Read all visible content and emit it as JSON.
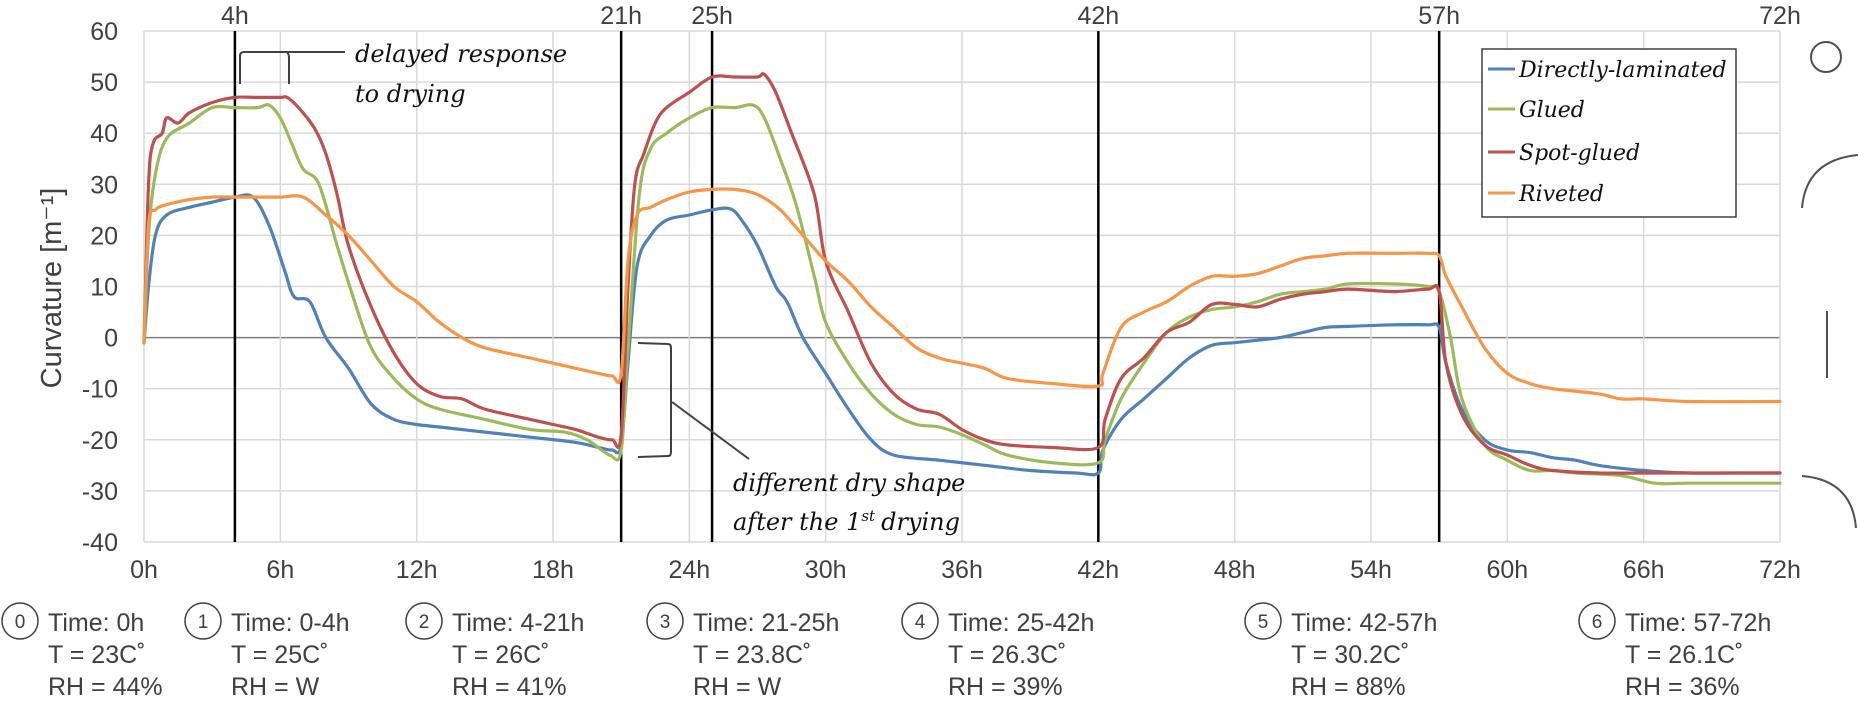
{
  "chart_data": {
    "type": "line",
    "title": "",
    "xlabel": "",
    "ylabel": "Curvature [m⁻¹]",
    "xlim": [
      0,
      72
    ],
    "ylim": [
      -40,
      60
    ],
    "x_unit": "h",
    "grid": true,
    "legend_position": "top-right",
    "x_ticks": [
      "0h",
      "6h",
      "12h",
      "18h",
      "24h",
      "30h",
      "36h",
      "42h",
      "48h",
      "54h",
      "60h",
      "66h",
      "72h"
    ],
    "x_tick_values": [
      0,
      6,
      12,
      18,
      24,
      30,
      36,
      42,
      48,
      54,
      60,
      66,
      72
    ],
    "y_ticks": [
      60,
      50,
      40,
      30,
      20,
      10,
      0,
      -10,
      -20,
      -30,
      -40
    ],
    "phase_markers": [
      {
        "x": 4,
        "label": "4h"
      },
      {
        "x": 21,
        "label": "21h"
      },
      {
        "x": 25,
        "label": "25h"
      },
      {
        "x": 42,
        "label": "42h"
      },
      {
        "x": 57,
        "label": "57h"
      },
      {
        "x": 72,
        "label": "72h"
      }
    ],
    "series": [
      {
        "name": "Directly-laminated",
        "color": "#4f81bd",
        "points": [
          [
            0,
            -1
          ],
          [
            0.2,
            10
          ],
          [
            0.5,
            20
          ],
          [
            1,
            24
          ],
          [
            2,
            25.5
          ],
          [
            3,
            26.5
          ],
          [
            4,
            27.5
          ],
          [
            4.8,
            27.5
          ],
          [
            5.5,
            22
          ],
          [
            6.2,
            13
          ],
          [
            6.6,
            8
          ],
          [
            7.3,
            7
          ],
          [
            8,
            0
          ],
          [
            9,
            -6
          ],
          [
            10,
            -13
          ],
          [
            11,
            -16
          ],
          [
            12,
            -17
          ],
          [
            13,
            -17.5
          ],
          [
            15,
            -18.5
          ],
          [
            17,
            -19.5
          ],
          [
            19,
            -20.5
          ],
          [
            20,
            -21.5
          ],
          [
            20.6,
            -22
          ],
          [
            21,
            -21
          ],
          [
            21.3,
            -5
          ],
          [
            21.7,
            14
          ],
          [
            22.3,
            20
          ],
          [
            23,
            23
          ],
          [
            24,
            24
          ],
          [
            25,
            25
          ],
          [
            25.8,
            25.2
          ],
          [
            26.3,
            23
          ],
          [
            27,
            18
          ],
          [
            27.8,
            10
          ],
          [
            28.3,
            7
          ],
          [
            29,
            0
          ],
          [
            30,
            -7
          ],
          [
            31,
            -14
          ],
          [
            32,
            -20
          ],
          [
            33,
            -23
          ],
          [
            35,
            -24
          ],
          [
            37,
            -25
          ],
          [
            39,
            -26
          ],
          [
            41,
            -26.5
          ],
          [
            42,
            -26.5
          ],
          [
            42.2,
            -22
          ],
          [
            43,
            -16
          ],
          [
            44,
            -12
          ],
          [
            45,
            -8
          ],
          [
            46,
            -4
          ],
          [
            47,
            -1.5
          ],
          [
            48,
            -1
          ],
          [
            49,
            -0.5
          ],
          [
            50,
            0
          ],
          [
            51,
            1
          ],
          [
            52,
            2
          ],
          [
            53,
            2.2
          ],
          [
            55,
            2.5
          ],
          [
            56.5,
            2.5
          ],
          [
            57,
            2
          ],
          [
            57.3,
            -5
          ],
          [
            58,
            -14
          ],
          [
            59,
            -20
          ],
          [
            60,
            -22
          ],
          [
            61,
            -22.5
          ],
          [
            62,
            -23.5
          ],
          [
            63,
            -24
          ],
          [
            64,
            -25
          ],
          [
            66,
            -26
          ],
          [
            68,
            -26.5
          ],
          [
            70,
            -26.5
          ],
          [
            72,
            -26.5
          ]
        ]
      },
      {
        "name": "Glued",
        "color": "#9bbb59",
        "points": [
          [
            0,
            -1
          ],
          [
            0.2,
            20
          ],
          [
            0.5,
            32
          ],
          [
            1,
            39
          ],
          [
            2,
            42
          ],
          [
            3,
            45
          ],
          [
            4,
            45
          ],
          [
            5,
            45
          ],
          [
            5.5,
            45.5
          ],
          [
            6,
            43
          ],
          [
            6.5,
            38
          ],
          [
            7,
            33
          ],
          [
            7.7,
            30
          ],
          [
            8.5,
            18
          ],
          [
            9.2,
            8
          ],
          [
            10,
            -2
          ],
          [
            11,
            -8
          ],
          [
            12,
            -12
          ],
          [
            13,
            -14
          ],
          [
            15,
            -16
          ],
          [
            17,
            -18
          ],
          [
            18.5,
            -18.5
          ],
          [
            19.5,
            -20
          ],
          [
            20.5,
            -23
          ],
          [
            21,
            -22
          ],
          [
            21.3,
            -2
          ],
          [
            21.8,
            28
          ],
          [
            22.3,
            37
          ],
          [
            23,
            40
          ],
          [
            24,
            43
          ],
          [
            25,
            45
          ],
          [
            26,
            45
          ],
          [
            26.8,
            45.5
          ],
          [
            27.3,
            43
          ],
          [
            28,
            35
          ],
          [
            28.7,
            26
          ],
          [
            29.5,
            12
          ],
          [
            30,
            3
          ],
          [
            31,
            -5
          ],
          [
            32,
            -11
          ],
          [
            33,
            -15
          ],
          [
            34,
            -17
          ],
          [
            35,
            -17.5
          ],
          [
            36,
            -19
          ],
          [
            37,
            -21
          ],
          [
            38,
            -23
          ],
          [
            40,
            -24.5
          ],
          [
            42,
            -24.5
          ],
          [
            42.3,
            -20
          ],
          [
            43,
            -12
          ],
          [
            44,
            -5
          ],
          [
            45,
            1
          ],
          [
            46,
            4
          ],
          [
            47,
            5.5
          ],
          [
            48,
            6
          ],
          [
            49,
            7
          ],
          [
            50,
            8.5
          ],
          [
            51,
            9
          ],
          [
            52,
            9.5
          ],
          [
            53,
            10.5
          ],
          [
            55,
            10.5
          ],
          [
            56.5,
            10
          ],
          [
            57,
            9
          ],
          [
            57.5,
            0
          ],
          [
            58,
            -12
          ],
          [
            59,
            -21
          ],
          [
            60,
            -24
          ],
          [
            61,
            -26
          ],
          [
            62,
            -26
          ],
          [
            63,
            -26.5
          ],
          [
            65,
            -27
          ],
          [
            66.5,
            -28.5
          ],
          [
            68,
            -28.5
          ],
          [
            72,
            -28.5
          ]
        ]
      },
      {
        "name": "Spot-glued",
        "color": "#c0504d",
        "points": [
          [
            0,
            -1
          ],
          [
            0.2,
            30
          ],
          [
            0.4,
            38
          ],
          [
            0.8,
            40
          ],
          [
            1,
            43
          ],
          [
            1.5,
            42
          ],
          [
            2,
            44
          ],
          [
            3,
            46
          ],
          [
            4,
            47
          ],
          [
            5,
            47
          ],
          [
            6,
            47
          ],
          [
            6.3,
            47
          ],
          [
            6.8,
            45
          ],
          [
            7.5,
            41
          ],
          [
            8,
            36
          ],
          [
            8.5,
            28
          ],
          [
            9,
            18
          ],
          [
            10,
            6
          ],
          [
            11,
            -3
          ],
          [
            12,
            -9
          ],
          [
            13,
            -11.5
          ],
          [
            14,
            -12
          ],
          [
            15,
            -14
          ],
          [
            17,
            -16
          ],
          [
            18,
            -17
          ],
          [
            19,
            -18
          ],
          [
            20,
            -19.5
          ],
          [
            20.6,
            -20
          ],
          [
            21,
            -19
          ],
          [
            21.3,
            10
          ],
          [
            21.6,
            30
          ],
          [
            22,
            36
          ],
          [
            22.5,
            42
          ],
          [
            23,
            45
          ],
          [
            24,
            48
          ],
          [
            25,
            51
          ],
          [
            26,
            51
          ],
          [
            27,
            51
          ],
          [
            27.3,
            51.5
          ],
          [
            27.8,
            48
          ],
          [
            28.5,
            40
          ],
          [
            29.5,
            28
          ],
          [
            30,
            15
          ],
          [
            31,
            5
          ],
          [
            32,
            -5
          ],
          [
            33,
            -11
          ],
          [
            34,
            -14
          ],
          [
            35,
            -15
          ],
          [
            36,
            -18
          ],
          [
            37,
            -20
          ],
          [
            38,
            -21
          ],
          [
            40,
            -21.5
          ],
          [
            42,
            -21.5
          ],
          [
            42.3,
            -16
          ],
          [
            43,
            -8
          ],
          [
            44,
            -4
          ],
          [
            45,
            1
          ],
          [
            46,
            3
          ],
          [
            47,
            6.5
          ],
          [
            48,
            6.5
          ],
          [
            49,
            6
          ],
          [
            50,
            7.5
          ],
          [
            51,
            8.5
          ],
          [
            52,
            9
          ],
          [
            53,
            9.5
          ],
          [
            55,
            9
          ],
          [
            56.5,
            9.5
          ],
          [
            57,
            9
          ],
          [
            57.3,
            -5
          ],
          [
            58,
            -15
          ],
          [
            59,
            -21
          ],
          [
            60,
            -23
          ],
          [
            61,
            -25
          ],
          [
            62,
            -26
          ],
          [
            64,
            -26.5
          ],
          [
            66,
            -26.5
          ],
          [
            68,
            -26.5
          ],
          [
            72,
            -26.5
          ]
        ]
      },
      {
        "name": "Riveted",
        "color": "#f79646",
        "points": [
          [
            0,
            -1
          ],
          [
            0.2,
            22
          ],
          [
            0.5,
            25
          ],
          [
            1,
            26
          ],
          [
            2,
            27
          ],
          [
            3,
            27.5
          ],
          [
            4,
            27.5
          ],
          [
            5,
            27.5
          ],
          [
            6,
            27.5
          ],
          [
            7,
            27.5
          ],
          [
            8,
            24
          ],
          [
            9,
            20
          ],
          [
            10,
            15
          ],
          [
            11,
            10
          ],
          [
            12,
            7
          ],
          [
            13,
            3
          ],
          [
            14,
            0
          ],
          [
            15,
            -2
          ],
          [
            17,
            -4
          ],
          [
            19,
            -6
          ],
          [
            20,
            -7
          ],
          [
            20.6,
            -7.5
          ],
          [
            21,
            -7
          ],
          [
            21.3,
            15
          ],
          [
            21.7,
            24
          ],
          [
            22.3,
            25.5
          ],
          [
            23,
            27
          ],
          [
            24,
            28.5
          ],
          [
            25,
            29
          ],
          [
            26,
            29
          ],
          [
            27,
            28
          ],
          [
            28,
            25
          ],
          [
            29,
            20
          ],
          [
            30,
            15
          ],
          [
            31,
            11
          ],
          [
            32,
            6
          ],
          [
            33,
            2
          ],
          [
            34,
            -2
          ],
          [
            35,
            -4
          ],
          [
            36,
            -5
          ],
          [
            37,
            -6
          ],
          [
            38,
            -8
          ],
          [
            40,
            -9
          ],
          [
            42,
            -9.5
          ],
          [
            42.2,
            -7
          ],
          [
            43,
            2
          ],
          [
            44,
            5
          ],
          [
            45,
            7
          ],
          [
            46,
            10
          ],
          [
            47,
            12
          ],
          [
            48,
            12
          ],
          [
            49,
            12.5
          ],
          [
            50,
            14
          ],
          [
            51,
            15.5
          ],
          [
            52,
            16
          ],
          [
            53,
            16.5
          ],
          [
            55,
            16.5
          ],
          [
            56.5,
            16.5
          ],
          [
            57,
            16
          ],
          [
            57.3,
            12
          ],
          [
            58,
            6
          ],
          [
            59,
            -2
          ],
          [
            60,
            -7
          ],
          [
            61,
            -9
          ],
          [
            62,
            -10
          ],
          [
            64,
            -11
          ],
          [
            65,
            -12
          ],
          [
            66,
            -12
          ],
          [
            68,
            -12.5
          ],
          [
            72,
            -12.5
          ]
        ]
      }
    ],
    "annotations": [
      {
        "text_lines": [
          "delayed response",
          "to drying"
        ]
      },
      {
        "text_lines": [
          "different dry shape",
          "after the 1",
          "drying"
        ],
        "superscript": "st"
      }
    ]
  },
  "conditions": [
    {
      "num": "0",
      "time": "Time: 0h",
      "temp": "T = 23C˚",
      "rh": "RH = 44%"
    },
    {
      "num": "1",
      "time": "Time: 0-4h",
      "temp": "T = 25C˚",
      "rh": "RH = W"
    },
    {
      "num": "2",
      "time": "Time: 4-21h",
      "temp": "T = 26C˚",
      "rh": "RH = 41%"
    },
    {
      "num": "3",
      "time": "Time: 21-25h",
      "temp": "T = 23.8C˚",
      "rh": "RH = W"
    },
    {
      "num": "4",
      "time": "Time: 25-42h",
      "temp": "T = 26.3C˚",
      "rh": "RH = 39%"
    },
    {
      "num": "5",
      "time": "Time: 42-57h",
      "temp": "T = 30.2C˚",
      "rh": "RH = 88%"
    },
    {
      "num": "6",
      "time": "Time: 57-72h",
      "temp": "T = 26.1C˚",
      "rh": "RH = 36%"
    }
  ],
  "shape_icons": [
    "circle-shape-icon",
    "upward-arc-shape-icon",
    "flat-line-shape-icon",
    "downward-arc-shape-icon"
  ]
}
